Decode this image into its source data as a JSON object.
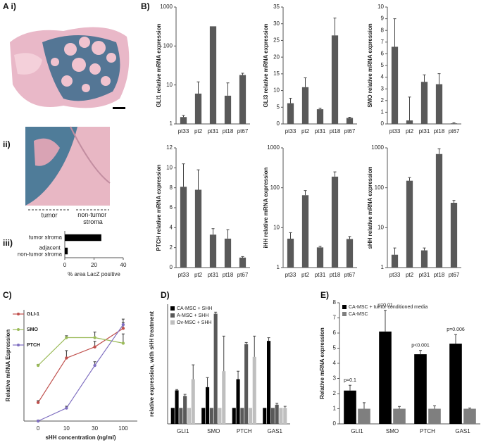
{
  "panels": [
    "A i)",
    "ii)",
    "iii)",
    "B)",
    "C)",
    "D)",
    "E)"
  ],
  "image_labels": [
    "tumor",
    "non-tumor stroma"
  ],
  "chart_data": [
    {
      "type": "hbar",
      "categories": [
        "tumor stroma",
        "adjacent non-tumor stroma"
      ],
      "values": [
        25,
        2
      ],
      "color": "#000000",
      "xlim": [
        0,
        40
      ],
      "xticks": [
        0,
        20,
        40
      ],
      "xlabel": "% area LacZ positive"
    },
    {
      "type": "bar",
      "categories": [
        "pt33",
        "pt2",
        "pt31",
        "pt18",
        "pt67"
      ],
      "values": [
        1.5,
        6,
        320,
        5.3,
        18
      ],
      "errors": [
        0.15,
        6,
        0,
        6,
        2
      ],
      "color": "#595959",
      "log": true,
      "ylim": [
        1,
        1000
      ],
      "yticks": [
        1,
        10,
        100,
        1000
      ],
      "ylabel": "GLI1 relative mRNA expression"
    },
    {
      "type": "bar",
      "categories": [
        "pt33",
        "pt2",
        "pt31",
        "pt18",
        "pt67"
      ],
      "values": [
        6.2,
        11,
        4.4,
        26.5,
        1.8
      ],
      "errors": [
        1.5,
        2.8,
        0.3,
        5.2,
        0.2
      ],
      "color": "#595959",
      "log": false,
      "ylim": [
        0,
        35
      ],
      "yticks": [
        0,
        5,
        10,
        15,
        20,
        25,
        30,
        35
      ],
      "ylabel": "GLI3 relative mRNA expression"
    },
    {
      "type": "bar",
      "categories": [
        "pt33",
        "pt2",
        "pt31",
        "pt18",
        "pt67"
      ],
      "values": [
        6.6,
        0.3,
        3.6,
        3.4,
        0.05
      ],
      "errors": [
        2.4,
        2.0,
        0.6,
        0.9,
        0.05
      ],
      "color": "#595959",
      "log": false,
      "ylim": [
        0,
        10
      ],
      "yticks": [
        0,
        1,
        2,
        3,
        4,
        5,
        6,
        7,
        8,
        9,
        10
      ],
      "ylabel": "SMO relative mRNA expression"
    },
    {
      "type": "bar",
      "categories": [
        "pt33",
        "pt2",
        "pt31",
        "pt18",
        "pt67"
      ],
      "values": [
        8.1,
        7.8,
        3.3,
        2.9,
        1.0
      ],
      "errors": [
        2.3,
        2.0,
        0.6,
        0.9,
        0.1
      ],
      "color": "#595959",
      "log": false,
      "ylim": [
        0,
        12
      ],
      "yticks": [
        0,
        2,
        4,
        6,
        8,
        10,
        12
      ],
      "ylabel": "PTCH relative mRNA expression"
    },
    {
      "type": "bar",
      "categories": [
        "pt33",
        "pt2",
        "pt31",
        "pt18",
        "pt67"
      ],
      "values": [
        5.3,
        65,
        3.2,
        190,
        5.2
      ],
      "errors": [
        2.2,
        20,
        0.2,
        60,
        0.8
      ],
      "color": "#595959",
      "log": true,
      "ylim": [
        1,
        1000
      ],
      "yticks": [
        1,
        10,
        100,
        1000
      ],
      "ylabel": "iHH relative mRNA expression"
    },
    {
      "type": "bar",
      "categories": [
        "pt33",
        "pt2",
        "pt31",
        "pt18",
        "pt67"
      ],
      "values": [
        2.1,
        150,
        2.7,
        700,
        42
      ],
      "errors": [
        1.0,
        30,
        0.4,
        250,
        6
      ],
      "color": "#595959",
      "log": true,
      "ylim": [
        1,
        1000
      ],
      "yticks": [
        1,
        10,
        100,
        1000
      ],
      "ylabel": "sHH relative mRNA expression"
    },
    {
      "type": "line",
      "categories": [
        "0",
        "10",
        "30",
        "100"
      ],
      "ylim": [
        0,
        6
      ],
      "legend": "upper left",
      "ylabel": "Relative mRNA Espression",
      "xlabel": "sHH concentration (ng/ml)",
      "series": [
        {
          "name": "GLI-1",
          "color": "#c0504d",
          "values": [
            1,
            3.4,
            4,
            5
          ],
          "errors": [
            0.1,
            0.4,
            0.3,
            0.3
          ]
        },
        {
          "name": "SMO",
          "color": "#9bbb59",
          "values": [
            3,
            4.5,
            4.5,
            4.2
          ],
          "errors": [
            0.05,
            0.1,
            0.3,
            0.5
          ]
        },
        {
          "name": "PTCH",
          "color": "#7f6fc0",
          "values": [
            0,
            0.7,
            3,
            5.2
          ],
          "errors": [
            0.05,
            0.1,
            0.2,
            0.3
          ]
        }
      ]
    },
    {
      "type": "bar",
      "categories": [
        "GLI1",
        "SMO",
        "PTCH",
        "GAS1"
      ],
      "ylim": [
        0,
        7.5
      ],
      "legend": "upper left",
      "ylabel": "relative expression, with sHH treatment",
      "series": [
        {
          "color": "#000000",
          "values": [
            1,
            1,
            1,
            1
          ]
        },
        {
          "name": "CA-MSC + SHH",
          "color": "#000000",
          "values": [
            2.1,
            2.3,
            2.8,
            5.2
          ],
          "errors": [
            0.05,
            0.6,
            0.5,
            0.2
          ]
        },
        {
          "color": "#595959",
          "values": [
            1,
            1,
            1,
            1
          ]
        },
        {
          "name": "A-MSC + SHH",
          "color": "#595959",
          "values": [
            1.75,
            6.9,
            5.0,
            1.2
          ],
          "errors": [
            0.1,
            0.1,
            0.1,
            0.1
          ]
        },
        {
          "color": "#bfbfbf",
          "values": [
            1,
            1,
            1,
            1
          ]
        },
        {
          "name": "Ov-MSC + SHH",
          "color": "#bfbfbf",
          "values": [
            2.8,
            3.3,
            4.2,
            1.0
          ],
          "errors": [
            0.9,
            2.2,
            1.3,
            0.1
          ]
        }
      ]
    },
    {
      "type": "bar",
      "categories": [
        "GLI1",
        "SMO",
        "PTCH",
        "GAS1"
      ],
      "ylim": [
        0,
        8
      ],
      "yticks": [
        0,
        1,
        2,
        3,
        4,
        5,
        6,
        7,
        8
      ],
      "legend": "upper left",
      "ylabel": "Relative mRNA expression",
      "annotations": [
        "p=0.1",
        "p=0.01",
        "p<0.001",
        "p=0.006"
      ],
      "series": [
        {
          "name": "CA-MSC + tumor conditioned media",
          "color": "#000000",
          "values": [
            2.2,
            6.1,
            4.6,
            5.3
          ],
          "errors": [
            0.35,
            1.4,
            0.25,
            0.6
          ]
        },
        {
          "name": "CA-MSC",
          "color": "#7f7f7f",
          "values": [
            1,
            1,
            1,
            1
          ],
          "errors": [
            0.4,
            0.15,
            0.2,
            0.05
          ]
        }
      ]
    }
  ]
}
